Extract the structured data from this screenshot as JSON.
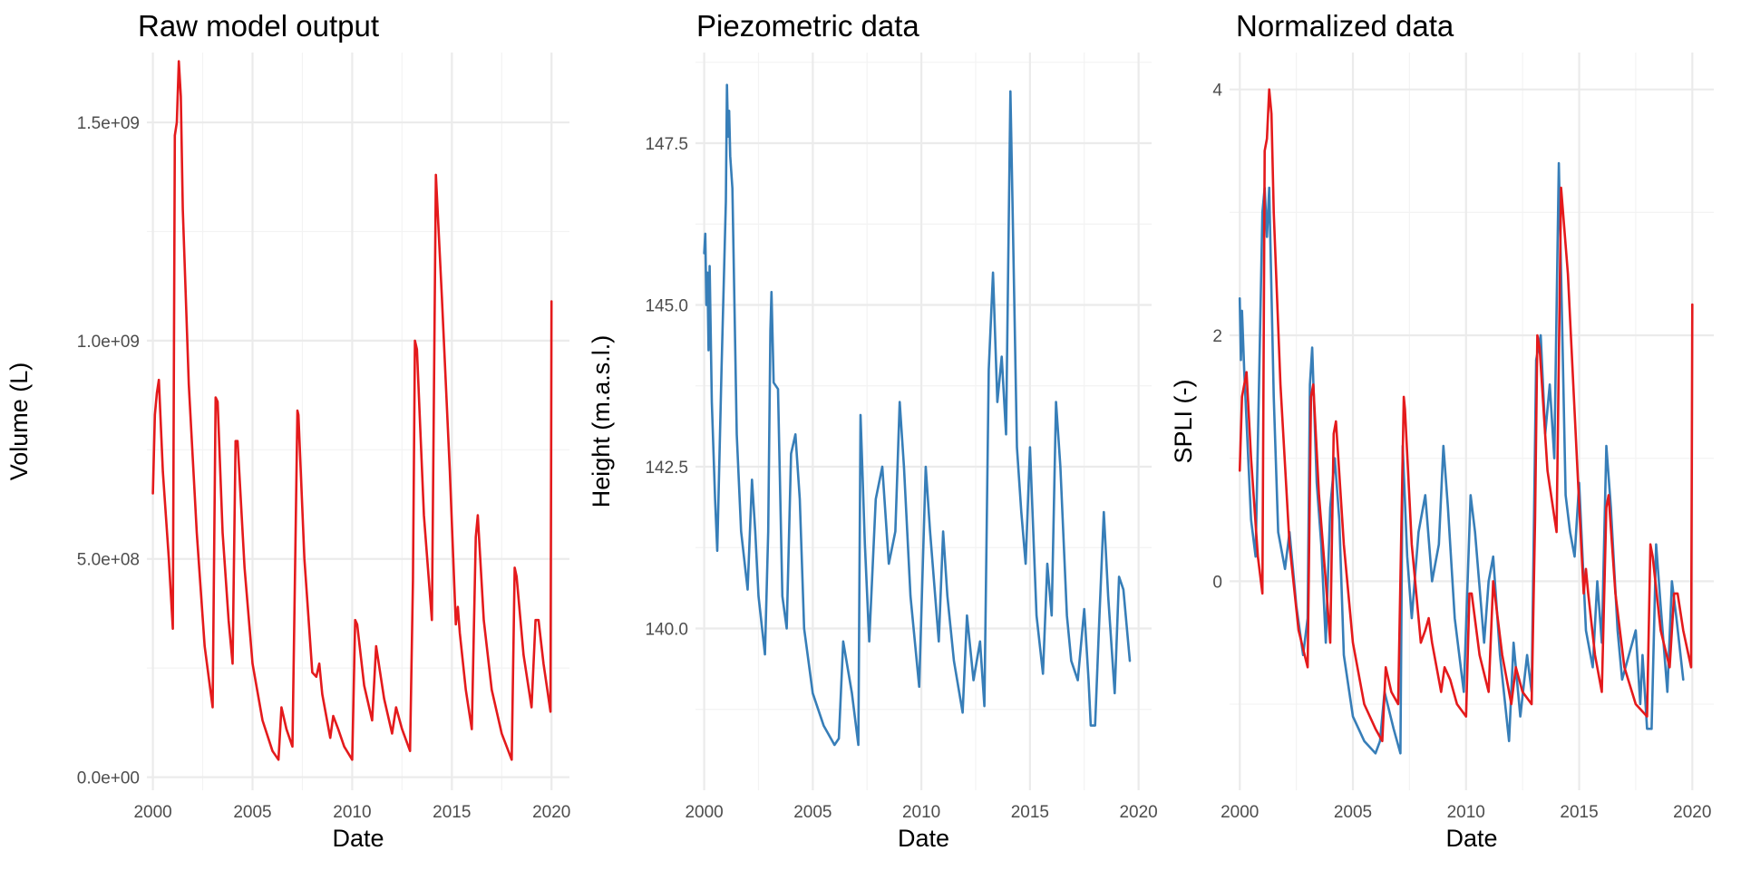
{
  "chart_data": [
    {
      "type": "line",
      "title": "Raw model output",
      "xlabel": "Date",
      "ylabel": "Volume (L)",
      "xlim": [
        1999.7,
        2020.9
      ],
      "ylim": [
        -30000000.0,
        1660000000.0
      ],
      "x_ticks": [
        2000,
        2005,
        2010,
        2015,
        2020
      ],
      "x_tick_labels": [
        "2000",
        "2005",
        "2010",
        "2015",
        "2020"
      ],
      "y_ticks": [
        0,
        500000000,
        1000000000,
        1500000000
      ],
      "y_tick_labels": [
        "0.0e+00",
        "5.0e+08",
        "1.0e+09",
        "1.5e+09"
      ],
      "grid": true,
      "series": [
        {
          "color": "#e41a1c",
          "x": [
            2000.0,
            2000.1,
            2000.2,
            2000.3,
            2000.5,
            2000.8,
            2001.0,
            2001.1,
            2001.2,
            2001.3,
            2001.4,
            2001.5,
            2001.8,
            2002.2,
            2002.6,
            2003.0,
            2003.15,
            2003.25,
            2003.5,
            2003.8,
            2004.0,
            2004.15,
            2004.25,
            2004.6,
            2005.0,
            2005.5,
            2006.0,
            2006.3,
            2006.45,
            2006.7,
            2007.0,
            2007.25,
            2007.3,
            2007.6,
            2008.0,
            2008.2,
            2008.35,
            2008.5,
            2008.9,
            2009.05,
            2009.3,
            2009.6,
            2010.0,
            2010.15,
            2010.25,
            2010.6,
            2011.0,
            2011.2,
            2011.6,
            2012.0,
            2012.2,
            2012.5,
            2012.9,
            2013.05,
            2013.15,
            2013.25,
            2013.6,
            2014.0,
            2014.2,
            2014.5,
            2014.9,
            2015.2,
            2015.3,
            2015.4,
            2015.7,
            2016.0,
            2016.2,
            2016.3,
            2016.6,
            2017.0,
            2017.5,
            2018.0,
            2018.15,
            2018.25,
            2018.6,
            2019.0,
            2019.2,
            2019.35,
            2019.6,
            2019.95,
            2020.0
          ],
          "y": [
            650000000,
            830000000,
            880000000,
            910000000,
            700000000,
            500000000,
            340000000,
            1470000000,
            1500000000,
            1640000000,
            1560000000,
            1300000000,
            900000000,
            560000000,
            300000000,
            160000000,
            870000000,
            860000000,
            560000000,
            360000000,
            260000000,
            770000000,
            770000000,
            480000000,
            260000000,
            130000000,
            60000000,
            40000000,
            160000000,
            110000000,
            70000000,
            840000000,
            830000000,
            500000000,
            240000000,
            230000000,
            260000000,
            190000000,
            90000000,
            140000000,
            110000000,
            70000000,
            40000000,
            360000000,
            350000000,
            210000000,
            130000000,
            300000000,
            180000000,
            100000000,
            160000000,
            110000000,
            60000000,
            450000000,
            1000000000,
            980000000,
            600000000,
            360000000,
            1380000000,
            1100000000,
            700000000,
            350000000,
            390000000,
            330000000,
            200000000,
            110000000,
            550000000,
            600000000,
            360000000,
            200000000,
            100000000,
            40000000,
            480000000,
            460000000,
            280000000,
            160000000,
            360000000,
            360000000,
            260000000,
            150000000,
            1090000000
          ]
        }
      ]
    },
    {
      "type": "line",
      "title": "Piezometric data",
      "xlabel": "Date",
      "ylabel": "Height (m.a.s.l.)",
      "xlim": [
        1999.6,
        2020.6
      ],
      "ylim": [
        137.5,
        148.9
      ],
      "x_ticks": [
        2000,
        2005,
        2010,
        2015,
        2020
      ],
      "x_tick_labels": [
        "2000",
        "2005",
        "2010",
        "2015",
        "2020"
      ],
      "y_ticks": [
        140.0,
        142.5,
        145.0,
        147.5
      ],
      "y_tick_labels": [
        "140.0",
        "142.5",
        "145.0",
        "147.5"
      ],
      "grid": true,
      "series": [
        {
          "color": "#377eb8",
          "x": [
            2000.0,
            2000.05,
            2000.1,
            2000.15,
            2000.2,
            2000.25,
            2000.35,
            2000.5,
            2000.6,
            2000.8,
            2001.0,
            2001.05,
            2001.1,
            2001.15,
            2001.2,
            2001.3,
            2001.5,
            2001.7,
            2002.0,
            2002.2,
            2002.35,
            2002.5,
            2002.8,
            2002.95,
            2003.05,
            2003.1,
            2003.2,
            2003.4,
            2003.6,
            2003.8,
            2004.0,
            2004.2,
            2004.4,
            2004.6,
            2005.0,
            2005.5,
            2006.0,
            2006.2,
            2006.4,
            2006.8,
            2007.1,
            2007.2,
            2007.4,
            2007.6,
            2007.9,
            2008.2,
            2008.5,
            2008.8,
            2009.0,
            2009.2,
            2009.5,
            2009.9,
            2010.2,
            2010.4,
            2010.8,
            2011.0,
            2011.2,
            2011.5,
            2011.9,
            2012.1,
            2012.4,
            2012.7,
            2012.9,
            2013.1,
            2013.3,
            2013.5,
            2013.7,
            2013.9,
            2014.1,
            2014.2,
            2014.4,
            2014.6,
            2014.8,
            2015.0,
            2015.3,
            2015.6,
            2015.8,
            2016.0,
            2016.2,
            2016.4,
            2016.7,
            2016.9,
            2017.2,
            2017.5,
            2017.7,
            2017.8,
            2018.0,
            2018.2,
            2018.4,
            2018.6,
            2018.9,
            2019.1,
            2019.3,
            2019.6
          ],
          "y": [
            145.8,
            146.1,
            145.0,
            145.5,
            144.3,
            145.6,
            143.5,
            142.0,
            141.2,
            144.0,
            146.6,
            148.4,
            147.6,
            148.0,
            147.3,
            146.8,
            143.0,
            141.5,
            140.6,
            142.3,
            141.5,
            140.5,
            139.6,
            141.5,
            144.6,
            145.2,
            143.8,
            143.7,
            140.5,
            140.0,
            142.7,
            143.0,
            142.0,
            140.0,
            139.0,
            138.5,
            138.2,
            138.3,
            139.8,
            139.0,
            138.2,
            143.3,
            141.3,
            139.8,
            142.0,
            142.5,
            141.0,
            141.5,
            143.5,
            142.5,
            140.5,
            139.1,
            142.5,
            141.5,
            139.8,
            141.5,
            140.5,
            139.5,
            138.7,
            140.2,
            139.2,
            139.8,
            138.8,
            144.0,
            145.5,
            143.5,
            144.2,
            143.0,
            148.3,
            146.5,
            142.8,
            141.8,
            141.0,
            142.8,
            140.2,
            139.3,
            141.0,
            140.2,
            143.5,
            142.5,
            140.2,
            139.5,
            139.2,
            140.3,
            139.2,
            138.5,
            138.5,
            140.2,
            141.8,
            140.5,
            139.0,
            140.8,
            140.6,
            139.5
          ]
        }
      ]
    },
    {
      "type": "line",
      "title": "Normalized data",
      "xlabel": "Date",
      "ylabel": "SPLI (-)",
      "xlim": [
        1999.55,
        2020.95
      ],
      "ylim": [
        -1.7,
        4.3
      ],
      "x_ticks": [
        2000,
        2005,
        2010,
        2015,
        2020
      ],
      "x_tick_labels": [
        "2000",
        "2005",
        "2010",
        "2015",
        "2020"
      ],
      "y_ticks": [
        0,
        2,
        4
      ],
      "y_tick_labels": [
        "0",
        "2",
        "4"
      ],
      "grid": true,
      "series": [
        {
          "color": "#377eb8",
          "x": [
            2000.0,
            2000.05,
            2000.1,
            2000.2,
            2000.3,
            2000.5,
            2000.7,
            2001.0,
            2001.1,
            2001.2,
            2001.3,
            2001.5,
            2001.7,
            2002.0,
            2002.2,
            2002.35,
            2002.5,
            2002.8,
            2003.0,
            2003.1,
            2003.2,
            2003.4,
            2003.6,
            2003.8,
            2004.0,
            2004.2,
            2004.4,
            2004.6,
            2005.0,
            2005.5,
            2006.0,
            2006.2,
            2006.4,
            2006.8,
            2007.1,
            2007.2,
            2007.4,
            2007.6,
            2007.9,
            2008.2,
            2008.5,
            2008.8,
            2009.0,
            2009.2,
            2009.5,
            2009.9,
            2010.2,
            2010.4,
            2010.8,
            2011.0,
            2011.2,
            2011.5,
            2011.9,
            2012.1,
            2012.4,
            2012.7,
            2012.9,
            2013.1,
            2013.3,
            2013.5,
            2013.7,
            2013.9,
            2014.1,
            2014.2,
            2014.4,
            2014.6,
            2014.8,
            2015.0,
            2015.3,
            2015.6,
            2015.8,
            2016.0,
            2016.2,
            2016.4,
            2016.7,
            2016.9,
            2017.2,
            2017.5,
            2017.7,
            2017.8,
            2018.0,
            2018.2,
            2018.4,
            2018.6,
            2018.9,
            2019.1,
            2019.3,
            2019.6
          ],
          "y": [
            2.3,
            1.8,
            2.2,
            1.7,
            1.3,
            0.5,
            0.2,
            3.0,
            3.2,
            2.8,
            3.2,
            1.5,
            0.4,
            0.1,
            0.4,
            0.1,
            -0.2,
            -0.6,
            -0.3,
            1.6,
            1.9,
            0.8,
            0.3,
            -0.5,
            0.6,
            1.0,
            0.5,
            -0.6,
            -1.1,
            -1.3,
            -1.4,
            -1.3,
            -0.9,
            -1.2,
            -1.4,
            1.1,
            0.2,
            -0.3,
            0.4,
            0.7,
            0.0,
            0.3,
            1.1,
            0.6,
            -0.3,
            -0.9,
            0.7,
            0.4,
            -0.5,
            0.0,
            0.2,
            -0.6,
            -1.3,
            -0.5,
            -1.1,
            -0.6,
            -0.9,
            1.8,
            2.0,
            1.2,
            1.6,
            1.0,
            3.4,
            2.5,
            0.7,
            0.4,
            0.2,
            0.8,
            -0.4,
            -0.7,
            0.0,
            -0.5,
            1.1,
            0.6,
            -0.4,
            -0.8,
            -0.6,
            -0.4,
            -1.0,
            -0.6,
            -1.2,
            -1.2,
            0.3,
            -0.2,
            -0.9,
            0.0,
            -0.3,
            -0.8
          ]
        },
        {
          "color": "#e41a1c",
          "x": [
            2000.0,
            2000.1,
            2000.2,
            2000.3,
            2000.5,
            2000.8,
            2001.0,
            2001.1,
            2001.2,
            2001.3,
            2001.4,
            2001.5,
            2001.8,
            2002.2,
            2002.6,
            2003.0,
            2003.15,
            2003.25,
            2003.5,
            2003.8,
            2004.0,
            2004.15,
            2004.25,
            2004.6,
            2005.0,
            2005.5,
            2006.0,
            2006.3,
            2006.45,
            2006.7,
            2007.0,
            2007.25,
            2007.3,
            2007.6,
            2008.0,
            2008.2,
            2008.35,
            2008.5,
            2008.9,
            2009.05,
            2009.3,
            2009.6,
            2010.0,
            2010.15,
            2010.25,
            2010.6,
            2011.0,
            2011.2,
            2011.6,
            2012.0,
            2012.2,
            2012.5,
            2012.9,
            2013.05,
            2013.15,
            2013.25,
            2013.6,
            2014.0,
            2014.2,
            2014.5,
            2014.9,
            2015.2,
            2015.3,
            2015.4,
            2015.7,
            2016.0,
            2016.2,
            2016.3,
            2016.6,
            2017.0,
            2017.5,
            2018.0,
            2018.15,
            2018.25,
            2018.6,
            2019.0,
            2019.2,
            2019.35,
            2019.6,
            2019.95,
            2020.0
          ],
          "y": [
            0.9,
            1.5,
            1.6,
            1.7,
            1.0,
            0.2,
            -0.1,
            3.5,
            3.6,
            4.0,
            3.8,
            3.0,
            1.6,
            0.3,
            -0.4,
            -0.7,
            1.5,
            1.6,
            0.7,
            0.0,
            -0.5,
            1.2,
            1.3,
            0.3,
            -0.5,
            -1.0,
            -1.2,
            -1.3,
            -0.7,
            -0.9,
            -1.0,
            1.5,
            1.4,
            0.3,
            -0.5,
            -0.4,
            -0.3,
            -0.5,
            -0.9,
            -0.7,
            -0.8,
            -1.0,
            -1.1,
            -0.1,
            -0.1,
            -0.6,
            -0.9,
            0.0,
            -0.6,
            -1.0,
            -0.7,
            -0.9,
            -1.0,
            0.5,
            2.0,
            1.9,
            0.9,
            0.4,
            3.2,
            2.5,
            1.0,
            -0.1,
            0.1,
            -0.1,
            -0.6,
            -0.9,
            0.6,
            0.7,
            -0.1,
            -0.7,
            -1.0,
            -1.1,
            0.3,
            0.2,
            -0.4,
            -0.7,
            -0.1,
            -0.1,
            -0.4,
            -0.7,
            2.25
          ]
        }
      ]
    }
  ]
}
